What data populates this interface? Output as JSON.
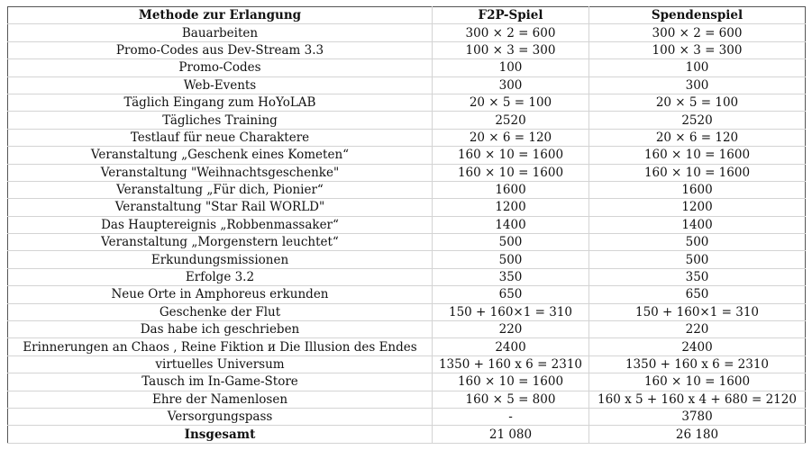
{
  "headers": [
    "Methode zur Erlangung",
    "F2P-Spiel",
    "Spendenspiel"
  ],
  "rows": [
    [
      "Bauarbeiten",
      "300 × 2 = 600",
      "300 × 2 = 600"
    ],
    [
      "Promo-Codes aus Dev-Stream 3.3",
      "100 × 3 = 300",
      "100 × 3 = 300"
    ],
    [
      "Promo-Codes",
      "100",
      "100"
    ],
    [
      "Web-Events",
      "300",
      "300"
    ],
    [
      "Täglich Eingang zum HoYoLAB",
      "20 × 5 = 100",
      "20 × 5 = 100"
    ],
    [
      "Tägliches Training",
      "2520",
      "2520"
    ],
    [
      "Testlauf für neue Charaktere",
      "20 × 6 = 120",
      "20 × 6 = 120"
    ],
    [
      "Veranstaltung „Geschenk eines Kometen“",
      "160 × 10 = 1600",
      "160 × 10 = 1600"
    ],
    [
      "Veranstaltung \"Weihnachtsgeschenke\"",
      "160 × 10 = 1600",
      "160 × 10 = 1600"
    ],
    [
      "Veranstaltung „Für dich, Pionier“",
      "1600",
      "1600"
    ],
    [
      "Veranstaltung \"Star Rail WORLD\"",
      "1200",
      "1200"
    ],
    [
      "Das Hauptereignis „Robbenmassaker“",
      "1400",
      "1400"
    ],
    [
      "Veranstaltung „Morgenstern leuchtet“",
      "500",
      "500"
    ],
    [
      "Erkundungsmissionen",
      "500",
      "500"
    ],
    [
      "Erfolge 3.2",
      "350",
      "350"
    ],
    [
      "Neue Orte in Amphoreus erkunden",
      "650",
      "650"
    ],
    [
      "Geschenke der Flut",
      "150 + 160×1 = 310",
      "150 + 160×1 = 310"
    ],
    [
      "Das habe ich geschrieben",
      "220",
      "220"
    ],
    [
      "Erinnerungen an Chaos , Reine Fiktion и Die Illusion des Endes",
      "2400",
      "2400"
    ],
    [
      "virtuelles Universum",
      "1350 + 160 x 6 = 2310",
      "1350 + 160 x 6 = 2310"
    ],
    [
      "Tausch im In-Game-Store",
      "160 × 10 = 1600",
      "160 × 10 = 1600"
    ],
    [
      "Ehre der Namenlosen",
      "160 × 5 = 800",
      "160 x 5 + 160 x 4 + 680 = 2120"
    ],
    [
      "Versorgungspass",
      "-",
      "3780"
    ]
  ],
  "total": [
    "Insgesamt",
    "21 080",
    "26 180"
  ]
}
